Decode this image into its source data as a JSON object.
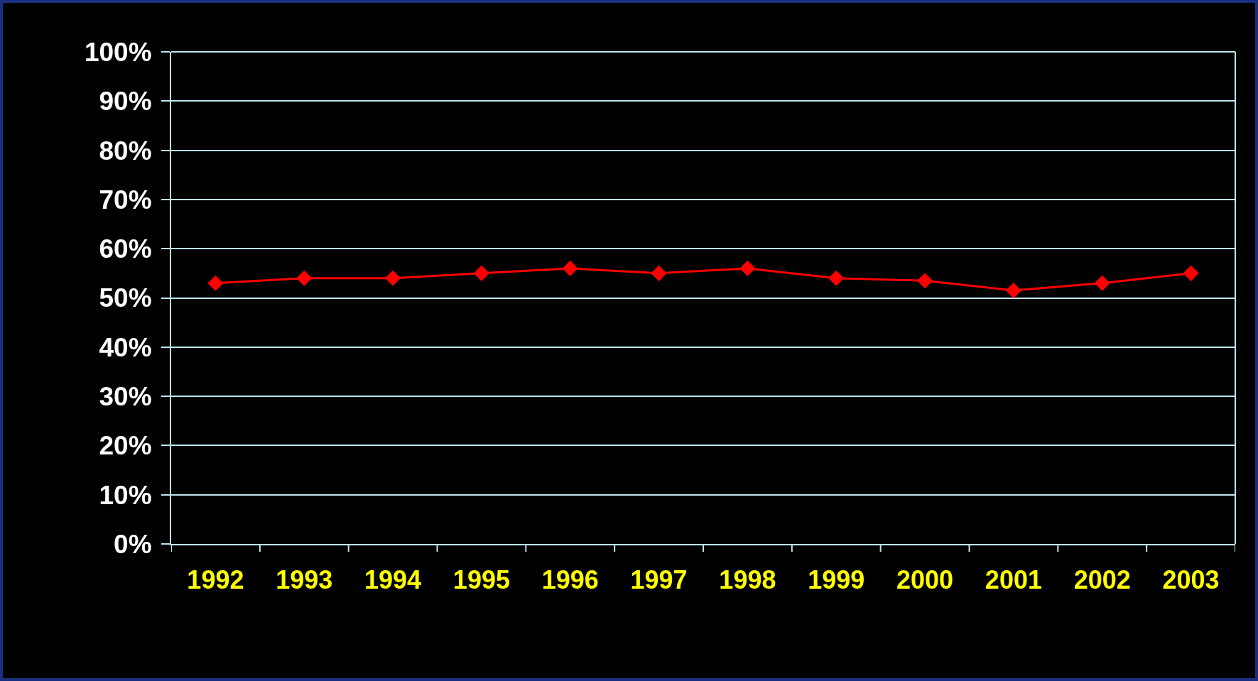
{
  "chart_data": {
    "type": "line",
    "categories": [
      "1992",
      "1993",
      "1994",
      "1995",
      "1996",
      "1997",
      "1998",
      "1999",
      "2000",
      "2001",
      "2002",
      "2003"
    ],
    "series": [
      {
        "color": "#ff0000",
        "values": [
          53,
          54,
          54,
          55,
          56,
          55,
          56,
          54,
          53.5,
          51.5,
          53,
          55
        ]
      }
    ],
    "ylim": [
      0,
      100
    ],
    "yticks": [
      {
        "value": 0,
        "label": "0%"
      },
      {
        "value": 10,
        "label": "10%"
      },
      {
        "value": 20,
        "label": "20%"
      },
      {
        "value": 30,
        "label": "30%"
      },
      {
        "value": 40,
        "label": "40%"
      },
      {
        "value": 50,
        "label": "50%"
      },
      {
        "value": 60,
        "label": "60%"
      },
      {
        "value": 70,
        "label": "70%"
      },
      {
        "value": 80,
        "label": "80%"
      },
      {
        "value": 90,
        "label": "90%"
      },
      {
        "value": 100,
        "label": "100%"
      }
    ],
    "grid": "y",
    "marker": "diamond",
    "line_style": "solid"
  }
}
